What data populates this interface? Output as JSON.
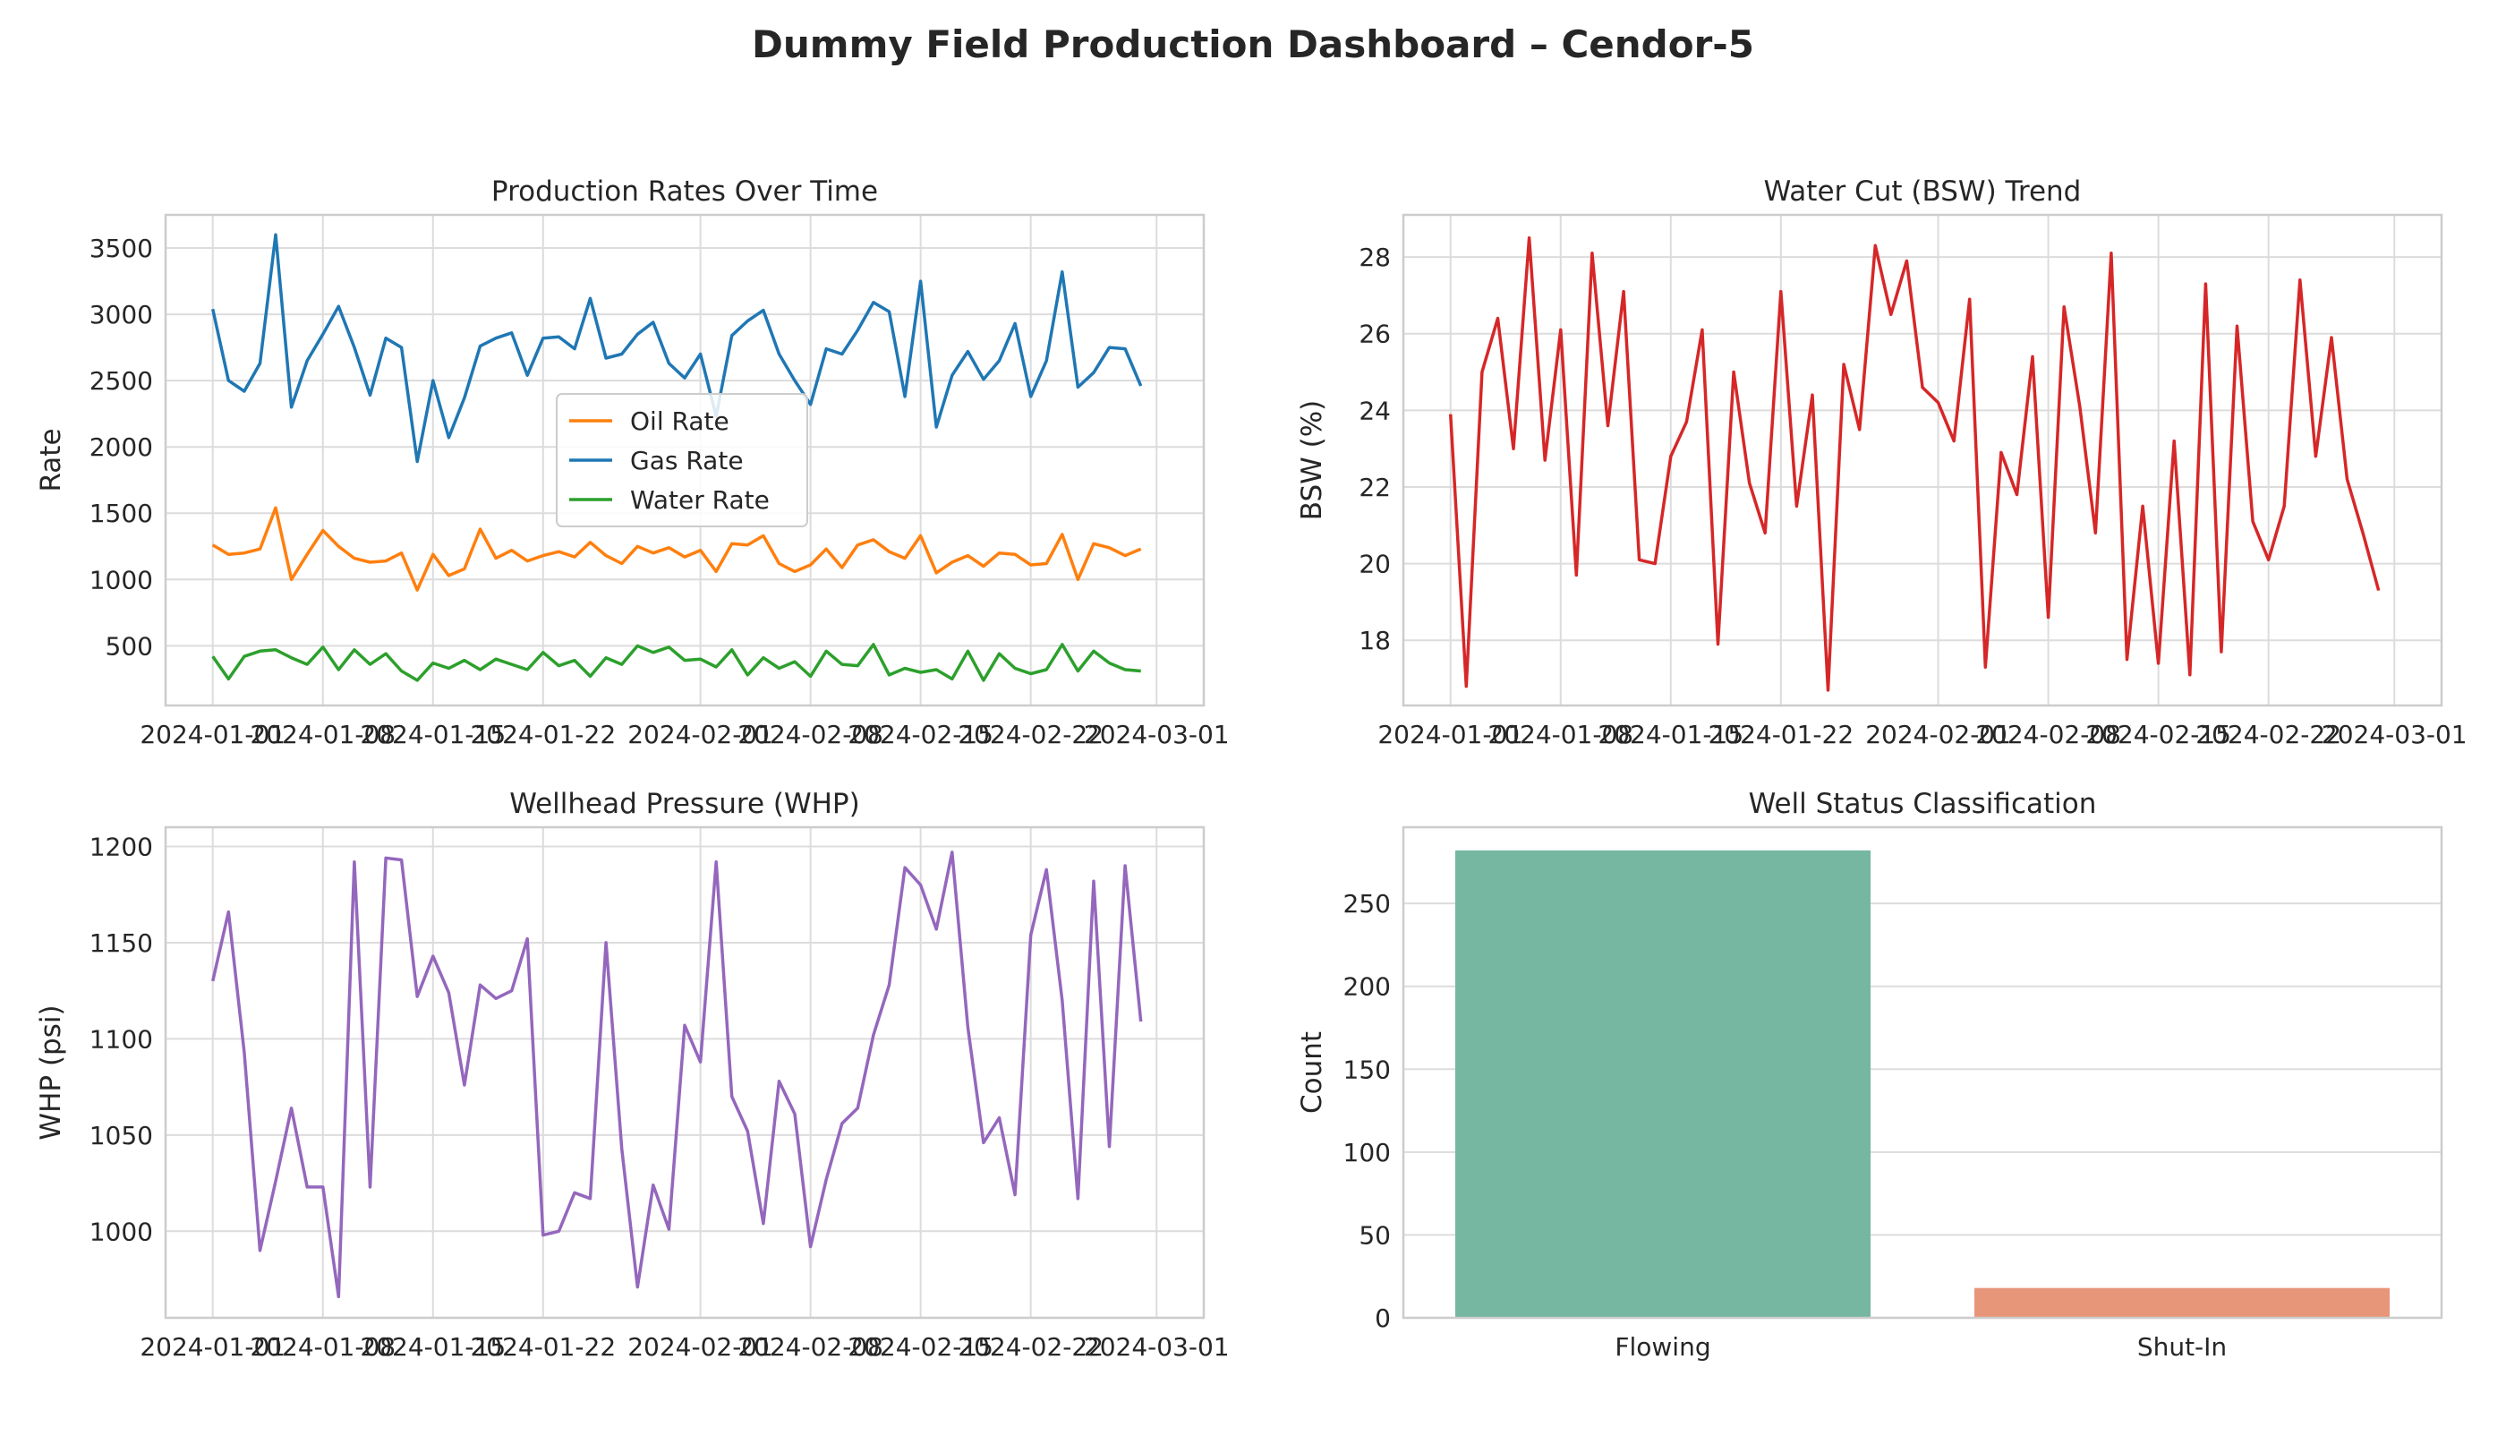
{
  "title": "Dummy Field Production Dashboard – Cendor-5",
  "chart_data": [
    {
      "type": "line",
      "title": "Production Rates Over Time",
      "xlabel": "",
      "ylabel": "Rate",
      "x_ticks": [
        "2024-01-01",
        "2024-01-08",
        "2024-01-15",
        "2024-01-22",
        "2024-02-01",
        "2024-02-08",
        "2024-02-15",
        "2024-02-22",
        "2024-03-01"
      ],
      "y_ticks": [
        500,
        1000,
        1500,
        2000,
        2500,
        3000,
        3500
      ],
      "ylim": [
        50,
        3750
      ],
      "legend": "center",
      "grid": true,
      "series": [
        {
          "name": "Oil Rate",
          "color": "#ff7f0e",
          "values": [
            1260,
            1190,
            1200,
            1230,
            1540,
            1000,
            1190,
            1370,
            1250,
            1160,
            1130,
            1140,
            1200,
            920,
            1190,
            1030,
            1080,
            1380,
            1160,
            1220,
            1140,
            1180,
            1210,
            1170,
            1280,
            1180,
            1120,
            1250,
            1200,
            1240,
            1170,
            1220,
            1060,
            1270,
            1260,
            1330,
            1120,
            1060,
            1110,
            1230,
            1090,
            1260,
            1300,
            1210,
            1160,
            1330,
            1050,
            1130,
            1180,
            1100,
            1200,
            1190,
            1110,
            1120,
            1340,
            1000,
            1270,
            1240,
            1180,
            1230
          ]
        },
        {
          "name": "Gas Rate",
          "color": "#1f77b4",
          "values": [
            3040,
            2500,
            2420,
            2630,
            3600,
            2300,
            2650,
            2850,
            3060,
            2750,
            2390,
            2820,
            2750,
            1890,
            2500,
            2070,
            2370,
            2760,
            2820,
            2860,
            2540,
            2820,
            2830,
            2740,
            3120,
            2670,
            2700,
            2850,
            2940,
            2630,
            2520,
            2700,
            2230,
            2840,
            2950,
            3030,
            2700,
            2500,
            2320,
            2740,
            2700,
            2880,
            3090,
            3020,
            2380,
            3250,
            2150,
            2540,
            2720,
            2510,
            2650,
            2930,
            2380,
            2650,
            3320,
            2450,
            2560,
            2750,
            2740,
            2460
          ]
        },
        {
          "name": "Water Rate",
          "color": "#2ca02c",
          "values": [
            420,
            250,
            420,
            460,
            470,
            410,
            360,
            490,
            320,
            470,
            360,
            440,
            310,
            240,
            370,
            330,
            390,
            320,
            400,
            360,
            320,
            450,
            350,
            390,
            270,
            410,
            360,
            500,
            450,
            490,
            390,
            400,
            340,
            470,
            280,
            410,
            330,
            380,
            270,
            460,
            360,
            350,
            510,
            280,
            330,
            300,
            320,
            250,
            460,
            240,
            440,
            330,
            290,
            320,
            510,
            310,
            460,
            370,
            320,
            310
          ]
        }
      ]
    },
    {
      "type": "line",
      "title": "Water Cut (BSW) Trend",
      "xlabel": "",
      "ylabel": "BSW (%)",
      "x_ticks": [
        "2024-01-01",
        "2024-01-08",
        "2024-01-15",
        "2024-01-22",
        "2024-02-01",
        "2024-02-08",
        "2024-02-15",
        "2024-02-22",
        "2024-03-01"
      ],
      "y_ticks": [
        18,
        20,
        22,
        24,
        26,
        28
      ],
      "ylim": [
        16.3,
        29.1
      ],
      "grid": true,
      "series": [
        {
          "color": "#d62728",
          "values": [
            23.9,
            16.8,
            25.0,
            26.4,
            23.0,
            28.5,
            22.7,
            26.1,
            19.7,
            28.1,
            23.6,
            27.1,
            20.1,
            20.0,
            22.8,
            23.7,
            26.1,
            17.9,
            25.0,
            22.1,
            20.8,
            27.1,
            21.5,
            24.4,
            16.7,
            25.2,
            23.5,
            28.3,
            26.5,
            27.9,
            24.6,
            24.2,
            23.2,
            26.9,
            17.3,
            22.9,
            21.8,
            25.4,
            18.6,
            26.7,
            24.1,
            20.8,
            28.1,
            17.5,
            21.5,
            17.4,
            23.2,
            17.1,
            27.3,
            17.7,
            26.2,
            21.1,
            20.1,
            21.5,
            27.4,
            22.8,
            25.9,
            22.2,
            20.8,
            19.3
          ]
        }
      ]
    },
    {
      "type": "line",
      "title": "Wellhead Pressure (WHP)",
      "xlabel": "",
      "ylabel": "WHP (psi)",
      "x_ticks": [
        "2024-01-01",
        "2024-01-08",
        "2024-01-15",
        "2024-01-22",
        "2024-02-01",
        "2024-02-08",
        "2024-02-15",
        "2024-02-22",
        "2024-03-01"
      ],
      "y_ticks": [
        1000,
        1050,
        1100,
        1150,
        1200
      ],
      "ylim": [
        955,
        1210
      ],
      "grid": true,
      "series": [
        {
          "color": "#9467bd",
          "values": [
            1130,
            1166,
            1093,
            990,
            1026,
            1064,
            1023,
            1023,
            966,
            1192,
            1023,
            1194,
            1193,
            1122,
            1143,
            1124,
            1076,
            1128,
            1121,
            1125,
            1152,
            998,
            1000,
            1020,
            1017,
            1150,
            1043,
            971,
            1024,
            1001,
            1107,
            1088,
            1192,
            1070,
            1052,
            1004,
            1078,
            1061,
            992,
            1027,
            1056,
            1064,
            1102,
            1128,
            1189,
            1180,
            1157,
            1197,
            1106,
            1046,
            1059,
            1019,
            1154,
            1188,
            1120,
            1017,
            1182,
            1044,
            1190,
            1109
          ]
        }
      ]
    },
    {
      "type": "bar",
      "title": "Well Status Classification",
      "xlabel": "",
      "ylabel": "Count",
      "categories": [
        "Flowing",
        "Shut-In"
      ],
      "values": [
        282,
        18
      ],
      "colors": [
        "#75b7a1",
        "#e8967a"
      ],
      "y_ticks": [
        0,
        50,
        100,
        150,
        200,
        250
      ],
      "ylim": [
        0,
        296
      ],
      "grid": true
    }
  ]
}
